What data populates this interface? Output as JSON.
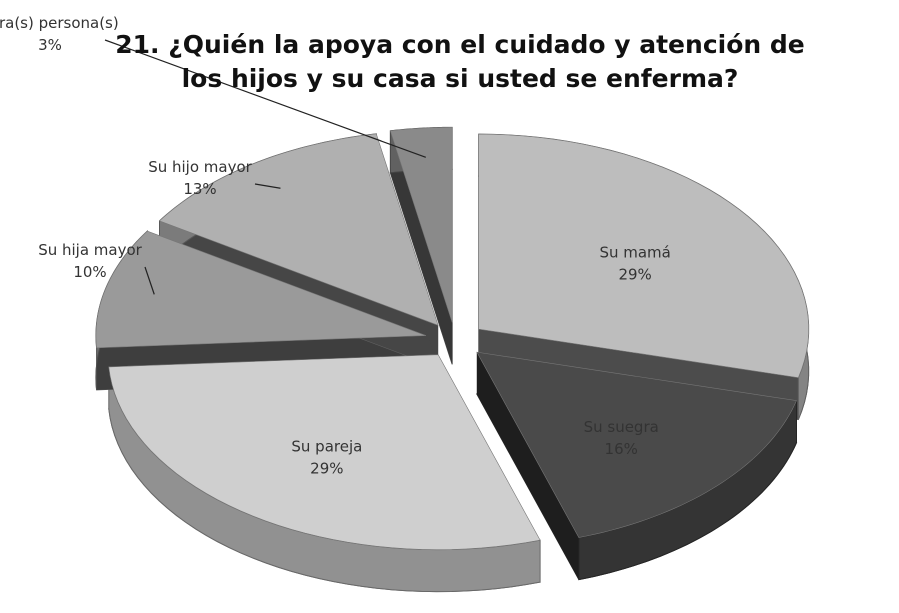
{
  "chart_data": {
    "type": "pie",
    "title": "21. ¿Quién la apoya con el cuidado y atención de los hijos y su casa si usted se enferma?",
    "categories": [
      "Su mamá",
      "Su suegra",
      "Su pareja",
      "Su hija mayor",
      "Su hijo mayor",
      "Otra(s) persona(s)"
    ],
    "values": [
      29,
      16,
      29,
      10,
      13,
      3
    ],
    "value_labels": [
      "29%",
      "16%",
      "29%",
      "10%",
      "13%",
      "3%"
    ],
    "colors": [
      "#bdbdbd",
      "#4a4a4a",
      "#cfcfcf",
      "#9a9a9a",
      "#b0b0b0",
      "#8a8a8a"
    ]
  }
}
